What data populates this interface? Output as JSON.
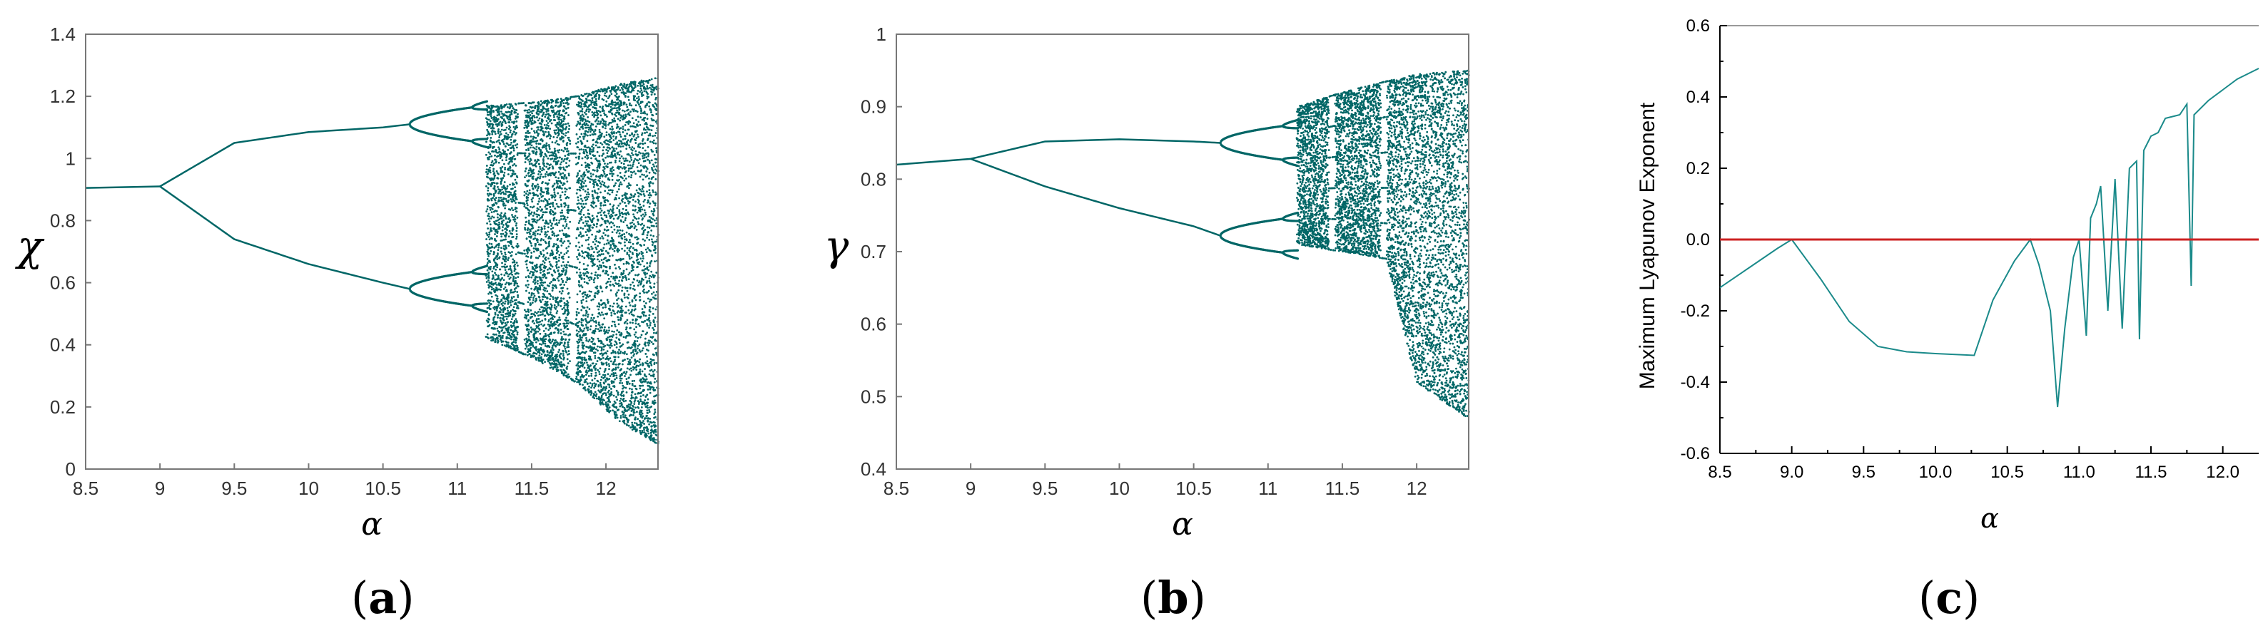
{
  "chart_data": [
    {
      "type": "scatter",
      "panel": "(a)",
      "panel_paren_open": "(",
      "panel_letter": "a",
      "panel_paren_close": ")",
      "xlabel": "α",
      "ylabel": "χ",
      "xlim": [
        8.5,
        12.35
      ],
      "ylim": [
        0,
        1.4
      ],
      "xticks": [
        "8.5",
        "9",
        "9.5",
        "10",
        "10.5",
        "11",
        "11.5",
        "12"
      ],
      "xtick_values": [
        8.5,
        9,
        9.5,
        10,
        10.5,
        11,
        11.5,
        12
      ],
      "yticks": [
        "0",
        "0.2",
        "0.4",
        "0.6",
        "0.8",
        "1",
        "1.2",
        "1.4"
      ],
      "ytick_values": [
        0,
        0.2,
        0.4,
        0.6,
        0.8,
        1,
        1.2,
        1.4
      ],
      "color": "#006666",
      "bifurcation": {
        "fixed_point": {
          "x": [
            8.5,
            9.0
          ],
          "y": [
            0.905,
            0.91
          ]
        },
        "upper_branch": {
          "x": [
            9.0,
            9.5,
            10.0,
            10.5,
            10.68
          ],
          "y": [
            0.91,
            1.05,
            1.085,
            1.1,
            1.11
          ]
        },
        "lower_branch": {
          "x": [
            9.0,
            9.5,
            10.0,
            10.5,
            10.68
          ],
          "y": [
            0.91,
            0.74,
            0.66,
            0.6,
            0.58
          ]
        },
        "period4_onset": 10.68,
        "period8_onset": 11.1,
        "chaos_onset": 11.2,
        "windows": [
          11.43,
          11.78
        ],
        "chaos_envelope": {
          "x": [
            11.2,
            11.5,
            11.8,
            12.1,
            12.35
          ],
          "y_min": [
            0.42,
            0.36,
            0.28,
            0.15,
            0.08
          ],
          "y_max": [
            1.17,
            1.18,
            1.2,
            1.24,
            1.26
          ]
        }
      }
    },
    {
      "type": "scatter",
      "panel": "(b)",
      "panel_paren_open": "(",
      "panel_letter": "b",
      "panel_paren_close": ")",
      "xlabel": "α",
      "ylabel": "γ",
      "xlim": [
        8.5,
        12.35
      ],
      "ylim": [
        0.4,
        1.0
      ],
      "xticks": [
        "8.5",
        "9",
        "9.5",
        "10",
        "10.5",
        "11",
        "11.5",
        "12"
      ],
      "xtick_values": [
        8.5,
        9,
        9.5,
        10,
        10.5,
        11,
        11.5,
        12
      ],
      "yticks": [
        "0.4",
        "0.5",
        "0.6",
        "0.7",
        "0.8",
        "0.9",
        "1"
      ],
      "ytick_values": [
        0.4,
        0.5,
        0.6,
        0.7,
        0.8,
        0.9,
        1.0
      ],
      "color": "#006666",
      "bifurcation": {
        "fixed_point": {
          "x": [
            8.5,
            9.0
          ],
          "y": [
            0.82,
            0.828
          ]
        },
        "upper_branch": {
          "x": [
            9.0,
            9.5,
            10.0,
            10.5,
            10.68
          ],
          "y": [
            0.828,
            0.852,
            0.855,
            0.852,
            0.85
          ]
        },
        "lower_branch": {
          "x": [
            9.0,
            9.5,
            10.0,
            10.5,
            10.68
          ],
          "y": [
            0.828,
            0.79,
            0.76,
            0.735,
            0.722
          ]
        },
        "period4_onset": 10.68,
        "period8_onset": 11.1,
        "chaos_onset": 11.2,
        "windows": [
          11.43,
          11.78
        ],
        "chaos_envelope": {
          "x": [
            11.2,
            11.5,
            11.8,
            12.0,
            12.35
          ],
          "y_min": [
            0.71,
            0.7,
            0.69,
            0.52,
            0.47
          ],
          "y_max": [
            0.9,
            0.92,
            0.935,
            0.945,
            0.95
          ]
        }
      }
    },
    {
      "type": "line",
      "panel": "(c)",
      "panel_paren_open": "(",
      "panel_letter": "c",
      "panel_paren_close": ")",
      "xlabel": "α",
      "ylabel": "Maximum  Lyapunov Exponent",
      "xlim": [
        8.5,
        12.25
      ],
      "ylim": [
        -0.6,
        0.6
      ],
      "xticks": [
        "8.5",
        "9.0",
        "9.5",
        "10.0",
        "10.5",
        "11.0",
        "11.5",
        "12.0"
      ],
      "xtick_values": [
        8.5,
        9.0,
        9.5,
        10.0,
        10.5,
        11.0,
        11.5,
        12.0
      ],
      "yticks": [
        "-0.6",
        "-0.4",
        "-0.2",
        "0.0",
        "0.2",
        "0.4",
        "0.6"
      ],
      "ytick_values": [
        -0.6,
        -0.4,
        -0.2,
        0.0,
        0.2,
        0.4,
        0.6
      ],
      "series": [
        {
          "color": "#1a8a8a",
          "x": [
            8.5,
            8.7,
            8.9,
            9.0,
            9.2,
            9.4,
            9.6,
            9.8,
            10.0,
            10.27,
            10.4,
            10.55,
            10.66,
            10.72,
            10.8,
            10.85,
            10.9,
            10.96,
            11.0,
            11.05,
            11.08,
            11.12,
            11.15,
            11.2,
            11.25,
            11.3,
            11.35,
            11.4,
            11.42,
            11.45,
            11.5,
            11.55,
            11.6,
            11.7,
            11.75,
            11.78,
            11.8,
            11.9,
            12.0,
            12.1,
            12.25
          ],
          "y": [
            -0.135,
            -0.08,
            -0.025,
            0.0,
            -0.11,
            -0.23,
            -0.3,
            -0.315,
            -0.32,
            -0.325,
            -0.17,
            -0.06,
            0.0,
            -0.07,
            -0.2,
            -0.47,
            -0.25,
            -0.05,
            0.0,
            -0.27,
            0.06,
            0.1,
            0.15,
            -0.2,
            0.17,
            -0.25,
            0.2,
            0.22,
            -0.28,
            0.25,
            0.29,
            0.3,
            0.34,
            0.35,
            0.38,
            -0.13,
            0.35,
            0.39,
            0.42,
            0.45,
            0.48
          ]
        },
        {
          "color": "#cc2222",
          "x": [
            8.5,
            12.25
          ],
          "y": [
            0.0,
            0.0
          ]
        }
      ]
    }
  ]
}
